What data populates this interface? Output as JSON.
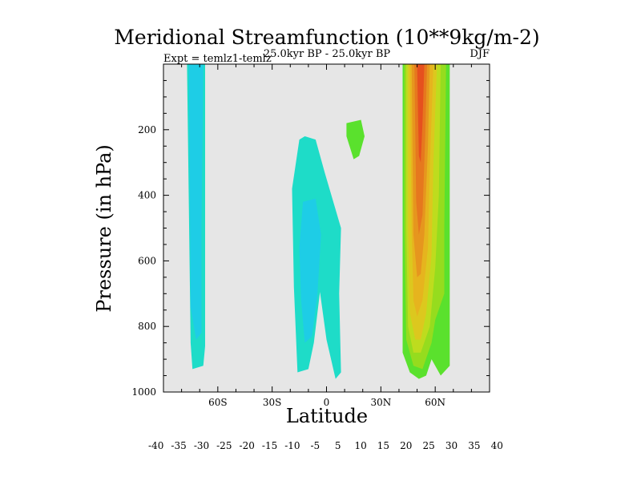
{
  "chart_data": {
    "type": "contour",
    "title": "Meridional Streamfunction (10**9kg/m-2)",
    "subtitle_left": "Expt = temlz1-temlz",
    "subtitle_center": "25.0kyr BP - 25.0kyr BP",
    "subtitle_right": "DJF",
    "xlabel": "Latitude",
    "ylabel": "Pressure (in hPa)",
    "xlim": [
      -90,
      90
    ],
    "ylim": [
      1000,
      0
    ],
    "x_ticks": [
      {
        "value": -60,
        "label": "60S"
      },
      {
        "value": -30,
        "label": "30S"
      },
      {
        "value": 0,
        "label": "0"
      },
      {
        "value": 30,
        "label": "30N"
      },
      {
        "value": 60,
        "label": "60N"
      }
    ],
    "y_ticks": [
      {
        "value": 200,
        "label": "200"
      },
      {
        "value": 400,
        "label": "400"
      },
      {
        "value": 600,
        "label": "600"
      },
      {
        "value": 800,
        "label": "800"
      },
      {
        "value": 1000,
        "label": "1000"
      }
    ],
    "background_color": "#e6e6e6",
    "colorbar": {
      "colors": [
        "#8c1ee6",
        "#5a2de6",
        "#2d5ae6",
        "#1e82e6",
        "#1ea0e6",
        "#1eb9e6",
        "#1ecde6",
        "#1edcc8",
        "#1edca0",
        "#e6e6e6",
        "#5ae12d",
        "#96dc1e",
        "#bedc1e",
        "#dcc81e",
        "#e6b41e",
        "#e6961e",
        "#e6781e",
        "#e6501e",
        "#e6281e"
      ],
      "labels": [
        "-40",
        "-35",
        "-30",
        "-25",
        "-20",
        "-15",
        "-10",
        "-5",
        "5",
        "10",
        "15",
        "20",
        "25",
        "30",
        "35",
        "40"
      ]
    },
    "regions": [
      {
        "name": "southern-high-lat-negative-cell",
        "level": -10,
        "color": "#1edcc8",
        "points": [
          [
            -77,
            0
          ],
          [
            -67,
            0
          ],
          [
            -67,
            860
          ],
          [
            -68,
            920
          ],
          [
            -74,
            930
          ],
          [
            -75,
            850
          ]
        ]
      },
      {
        "name": "southern-high-lat-negative-core",
        "level": -15,
        "color": "#1ecde6",
        "points": [
          [
            -76,
            0
          ],
          [
            -68,
            0
          ],
          [
            -69,
            500
          ],
          [
            -69,
            820
          ],
          [
            -72,
            840
          ],
          [
            -75,
            740
          ]
        ]
      },
      {
        "name": "tropical-negative-cell",
        "level": -10,
        "color": "#1edcc8",
        "points": [
          [
            -15,
            230
          ],
          [
            -12,
            220
          ],
          [
            -6,
            230
          ],
          [
            -1,
            330
          ],
          [
            8,
            500
          ],
          [
            7,
            700
          ],
          [
            8,
            940
          ],
          [
            5,
            960
          ],
          [
            0,
            840
          ],
          [
            -4,
            680
          ],
          [
            -2,
            620
          ],
          [
            -7,
            850
          ],
          [
            -10,
            930
          ],
          [
            -16,
            940
          ],
          [
            -18,
            680
          ],
          [
            -19,
            380
          ]
        ]
      },
      {
        "name": "tropical-negative-core",
        "level": -15,
        "color": "#1ecde6",
        "points": [
          [
            -13,
            420
          ],
          [
            -6,
            410
          ],
          [
            -3,
            520
          ],
          [
            -5,
            700
          ],
          [
            -8,
            830
          ],
          [
            -12,
            850
          ],
          [
            -14,
            720
          ],
          [
            -15,
            560
          ]
        ]
      },
      {
        "name": "northern-positive-cell-outer",
        "level": 5,
        "color": "#5ae12d",
        "points": [
          [
            42,
            0
          ],
          [
            68,
            0
          ],
          [
            68,
            520
          ],
          [
            68,
            920
          ],
          [
            63,
            950
          ],
          [
            58,
            900
          ],
          [
            55,
            950
          ],
          [
            51,
            960
          ],
          [
            46,
            940
          ],
          [
            42,
            880
          ],
          [
            42,
            400
          ]
        ]
      },
      {
        "name": "northern-positive-cell-10",
        "level": 10,
        "color": "#96dc1e",
        "points": [
          [
            43,
            0
          ],
          [
            66,
            0
          ],
          [
            65,
            500
          ],
          [
            65,
            700
          ],
          [
            60,
            780
          ],
          [
            58,
            850
          ],
          [
            53,
            930
          ],
          [
            48,
            920
          ],
          [
            44,
            840
          ],
          [
            43,
            500
          ]
        ]
      },
      {
        "name": "northern-positive-cell-15",
        "level": 15,
        "color": "#bedc1e",
        "points": [
          [
            44,
            0
          ],
          [
            63,
            0
          ],
          [
            62,
            400
          ],
          [
            60,
            620
          ],
          [
            57,
            800
          ],
          [
            52,
            880
          ],
          [
            48,
            880
          ],
          [
            45,
            800
          ],
          [
            44,
            500
          ]
        ]
      },
      {
        "name": "northern-positive-cell-20",
        "level": 20,
        "color": "#dcc81e",
        "points": [
          [
            45,
            0
          ],
          [
            61,
            0
          ],
          [
            59,
            300
          ],
          [
            58,
            580
          ],
          [
            55,
            760
          ],
          [
            52,
            840
          ],
          [
            49,
            840
          ],
          [
            46,
            760
          ],
          [
            45,
            500
          ]
        ]
      },
      {
        "name": "northern-positive-cell-25",
        "level": 25,
        "color": "#e6b41e",
        "points": [
          [
            46,
            0
          ],
          [
            59,
            0
          ],
          [
            57,
            320
          ],
          [
            56,
            560
          ],
          [
            53,
            720
          ],
          [
            50,
            770
          ],
          [
            48,
            720
          ],
          [
            47,
            500
          ]
        ]
      },
      {
        "name": "northern-positive-cell-30",
        "level": 30,
        "color": "#e6961e",
        "points": [
          [
            47,
            0
          ],
          [
            57,
            0
          ],
          [
            56,
            250
          ],
          [
            54,
            520
          ],
          [
            52,
            640
          ],
          [
            50,
            650
          ],
          [
            48,
            520
          ]
        ]
      },
      {
        "name": "northern-positive-cell-35",
        "level": 35,
        "color": "#e6781e",
        "points": [
          [
            48.5,
            0
          ],
          [
            55.5,
            0
          ],
          [
            54.5,
            220
          ],
          [
            53,
            460
          ],
          [
            51,
            520
          ],
          [
            49.5,
            420
          ]
        ]
      },
      {
        "name": "northern-positive-cell-40",
        "level": 40,
        "color": "#e6501e",
        "points": [
          [
            50,
            0
          ],
          [
            54,
            0
          ],
          [
            53,
            180
          ],
          [
            52,
            300
          ],
          [
            51,
            280
          ],
          [
            50.5,
            150
          ]
        ]
      },
      {
        "name": "subtropical-positive-patch",
        "level": 5,
        "color": "#5ae12d",
        "points": [
          [
            11,
            180
          ],
          [
            19,
            170
          ],
          [
            21,
            220
          ],
          [
            18,
            280
          ],
          [
            15,
            290
          ],
          [
            11,
            220
          ]
        ]
      }
    ]
  }
}
